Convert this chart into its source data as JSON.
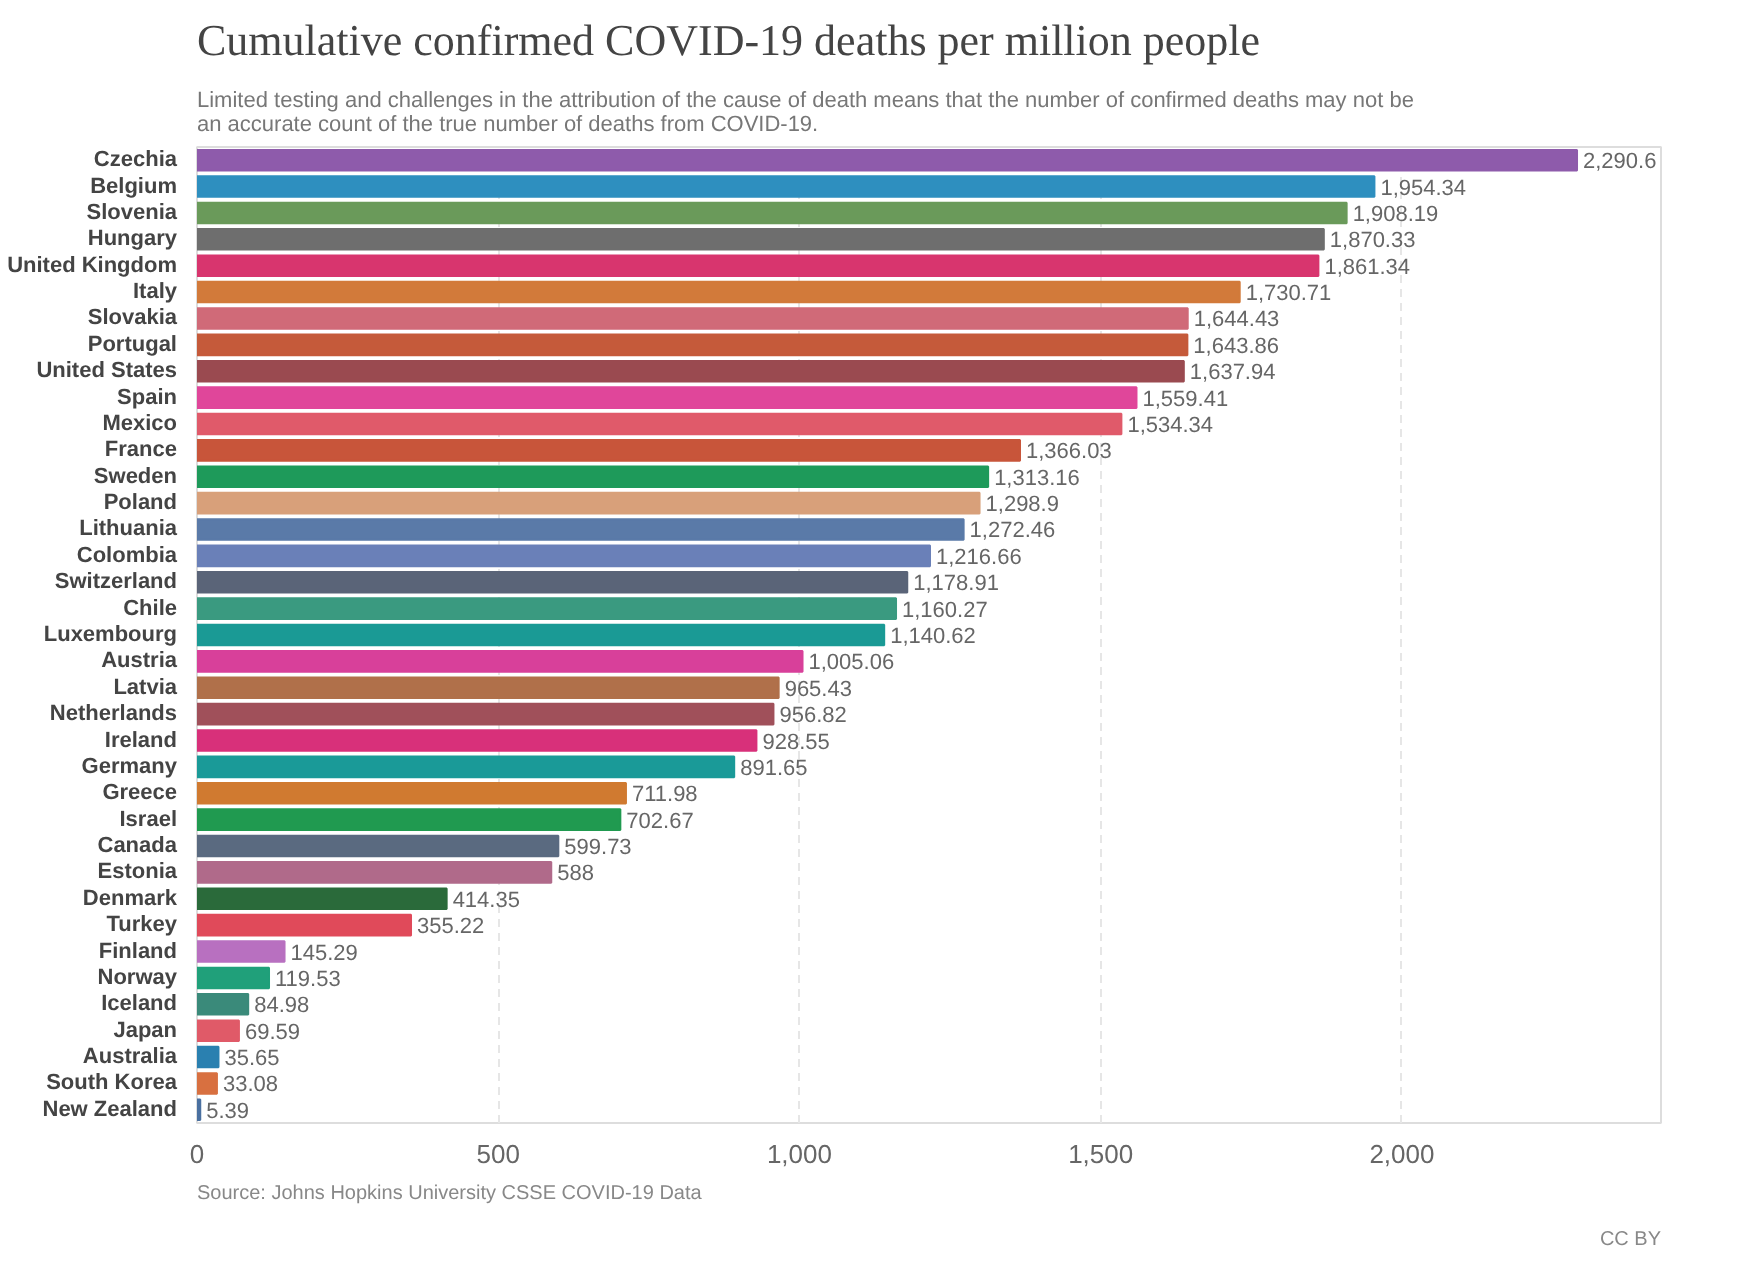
{
  "chart_data": {
    "type": "bar",
    "orientation": "horizontal",
    "title": "Cumulative confirmed COVID-19 deaths per million people",
    "subtitle": "Limited testing and challenges in the attribution of the cause of death means that the number of confirmed deaths may not be an accurate count of the true number of deaths from COVID-19.",
    "categories": [
      "Czechia",
      "Belgium",
      "Slovenia",
      "Hungary",
      "United Kingdom",
      "Italy",
      "Slovakia",
      "Portugal",
      "United States",
      "Spain",
      "Mexico",
      "France",
      "Sweden",
      "Poland",
      "Lithuania",
      "Colombia",
      "Switzerland",
      "Chile",
      "Luxembourg",
      "Austria",
      "Latvia",
      "Netherlands",
      "Ireland",
      "Germany",
      "Greece",
      "Israel",
      "Canada",
      "Estonia",
      "Denmark",
      "Turkey",
      "Finland",
      "Norway",
      "Iceland",
      "Japan",
      "Australia",
      "South Korea",
      "New Zealand"
    ],
    "values": [
      2290.6,
      1954.34,
      1908.19,
      1870.33,
      1861.34,
      1730.71,
      1644.43,
      1643.86,
      1637.94,
      1559.41,
      1534.34,
      1366.03,
      1313.16,
      1298.9,
      1272.46,
      1216.66,
      1178.91,
      1160.27,
      1140.62,
      1005.06,
      965.43,
      956.82,
      928.55,
      891.65,
      711.98,
      702.67,
      599.73,
      588,
      414.35,
      355.22,
      145.29,
      119.53,
      84.98,
      69.59,
      35.65,
      33.08,
      5.39
    ],
    "value_labels": [
      "2,290.6",
      "1,954.34",
      "1,908.19",
      "1,870.33",
      "1,861.34",
      "1,730.71",
      "1,644.43",
      "1,643.86",
      "1,637.94",
      "1,559.41",
      "1,534.34",
      "1,366.03",
      "1,313.16",
      "1,298.9",
      "1,272.46",
      "1,216.66",
      "1,178.91",
      "1,160.27",
      "1,140.62",
      "1,005.06",
      "965.43",
      "956.82",
      "928.55",
      "891.65",
      "711.98",
      "702.67",
      "599.73",
      "588",
      "414.35",
      "355.22",
      "145.29",
      "119.53",
      "84.98",
      "69.59",
      "35.65",
      "33.08",
      "5.39"
    ],
    "colors": [
      "#8e5bab",
      "#2e8fbf",
      "#6a9a5a",
      "#6e6e6e",
      "#d8356e",
      "#d27a3a",
      "#d06a78",
      "#c55a3a",
      "#9a4a50",
      "#e0469a",
      "#e05a6a",
      "#c8553a",
      "#1e9a5a",
      "#d8a07a",
      "#5a7aa8",
      "#6a80b8",
      "#5a6478",
      "#3a9a80",
      "#1a9a95",
      "#d8409a",
      "#b0704a",
      "#a0505a",
      "#d8307a",
      "#1a9a98",
      "#d07a30",
      "#209a50",
      "#5a6a80",
      "#b06a8a",
      "#2a6a3a",
      "#e04a5a",
      "#b870c0",
      "#20a07a",
      "#3a8a7a",
      "#e05a68",
      "#2a80b0",
      "#d87040",
      "#4a70a0"
    ],
    "xlim": [
      0,
      2430
    ],
    "xticks": [
      0,
      500,
      {
        "value": 1000,
        "label": "1,000"
      },
      {
        "value": 1500,
        "label": "1,500"
      },
      {
        "value": 2000,
        "label": "2,000"
      }
    ],
    "grid": "x",
    "annotations": [
      "Source: Johns Hopkins University CSSE COVID-19 Data",
      "CC BY"
    ]
  }
}
